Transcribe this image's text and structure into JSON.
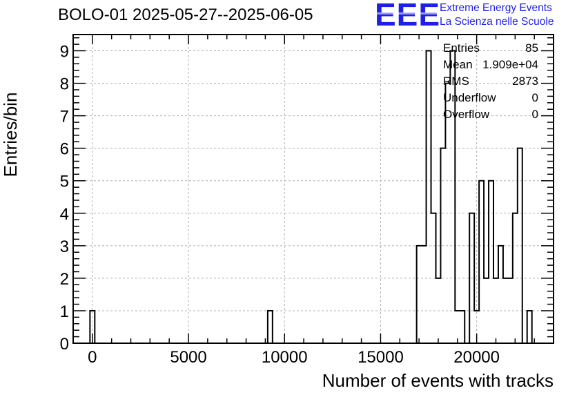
{
  "title": "BOLO-01 2025-05-27--2025-06-05",
  "logo": {
    "mark": "EEE",
    "line1": "Extreme Energy Events",
    "line2": "La Scienza nelle Scuole"
  },
  "stats": [
    {
      "label": "Entries",
      "value": "85"
    },
    {
      "label": "Mean",
      "value": "1.909e+04"
    },
    {
      "label": "RMS",
      "value": "2873"
    },
    {
      "label": "Underflow",
      "value": "0"
    },
    {
      "label": "Overflow",
      "value": "0"
    }
  ],
  "colors": {
    "line": "#000000",
    "grid": "#b0b0b0",
    "logo": "#1f1fe8"
  },
  "chart_data": {
    "type": "bar",
    "style": "step-histogram",
    "title": "BOLO-01 2025-05-27--2025-06-05",
    "xlabel": "Number of events with tracks",
    "ylabel": "Entries/bin",
    "xlim": [
      -1000,
      24000
    ],
    "ylim": [
      0,
      9.5
    ],
    "xticks": [
      0,
      5000,
      10000,
      15000,
      20000
    ],
    "yticks": [
      0,
      1,
      2,
      3,
      4,
      5,
      6,
      7,
      8,
      9
    ],
    "grid": true,
    "bin_width": 250,
    "bins": [
      {
        "x": -125,
        "value": 1
      },
      {
        "x": 9125,
        "value": 1
      },
      {
        "x": 16875,
        "value": 3
      },
      {
        "x": 17125,
        "value": 3
      },
      {
        "x": 17375,
        "value": 9
      },
      {
        "x": 17625,
        "value": 4
      },
      {
        "x": 17875,
        "value": 2
      },
      {
        "x": 18125,
        "value": 6
      },
      {
        "x": 18375,
        "value": 8
      },
      {
        "x": 18625,
        "value": 9
      },
      {
        "x": 18875,
        "value": 1
      },
      {
        "x": 19125,
        "value": 1
      },
      {
        "x": 19375,
        "value": 0
      },
      {
        "x": 19625,
        "value": 4
      },
      {
        "x": 19875,
        "value": 1
      },
      {
        "x": 20125,
        "value": 5
      },
      {
        "x": 20375,
        "value": 2
      },
      {
        "x": 20625,
        "value": 5
      },
      {
        "x": 20875,
        "value": 2
      },
      {
        "x": 21125,
        "value": 3
      },
      {
        "x": 21375,
        "value": 2
      },
      {
        "x": 21625,
        "value": 2
      },
      {
        "x": 21875,
        "value": 4
      },
      {
        "x": 22125,
        "value": 6
      },
      {
        "x": 22375,
        "value": 0
      },
      {
        "x": 22625,
        "value": 1
      }
    ]
  }
}
